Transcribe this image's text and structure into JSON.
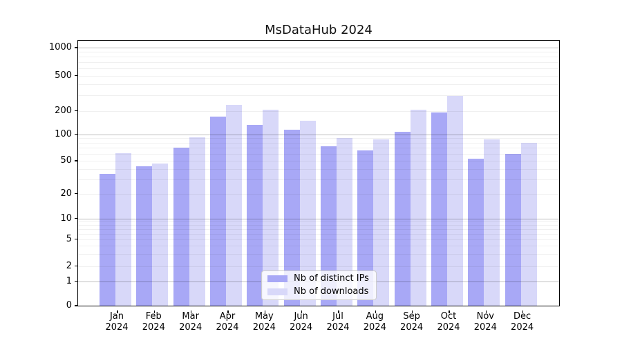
{
  "title": "MsDataHub 2024",
  "chart_data": {
    "type": "bar",
    "title": "MsDataHub 2024",
    "categories": [
      "Jan 2024",
      "Feb 2024",
      "Mar 2024",
      "Apr 2024",
      "May 2024",
      "Jun 2024",
      "Jul 2024",
      "Aug 2024",
      "Sep 2024",
      "Oct 2024",
      "Nov 2024",
      "Dec 2024"
    ],
    "series": [
      {
        "name": "Nb of distinct IPs",
        "color": "#a8a8f6",
        "values": [
          35,
          43,
          71,
          170,
          131,
          114,
          73,
          65,
          108,
          192,
          53,
          60
        ]
      },
      {
        "name": "Nb of downloads",
        "color": "#d8d8f9",
        "values": [
          61,
          46,
          93,
          233,
          204,
          150,
          90,
          88,
          206,
          292,
          88,
          80
        ]
      }
    ],
    "xlabel": "",
    "ylabel": "",
    "y_axis": {
      "scale": "symlog",
      "tick_values": [
        0,
        1,
        2,
        5,
        10,
        20,
        50,
        100,
        200,
        500,
        1000
      ],
      "ylim": [
        0,
        1200
      ]
    },
    "grid": {
      "horizontal": true,
      "major_gridlines_at": [
        1,
        10,
        100,
        1000
      ],
      "minor_gridlines": true
    },
    "legend": {
      "position": "lower center",
      "entries": [
        "Nb of distinct IPs",
        "Nb of downloads"
      ]
    }
  }
}
